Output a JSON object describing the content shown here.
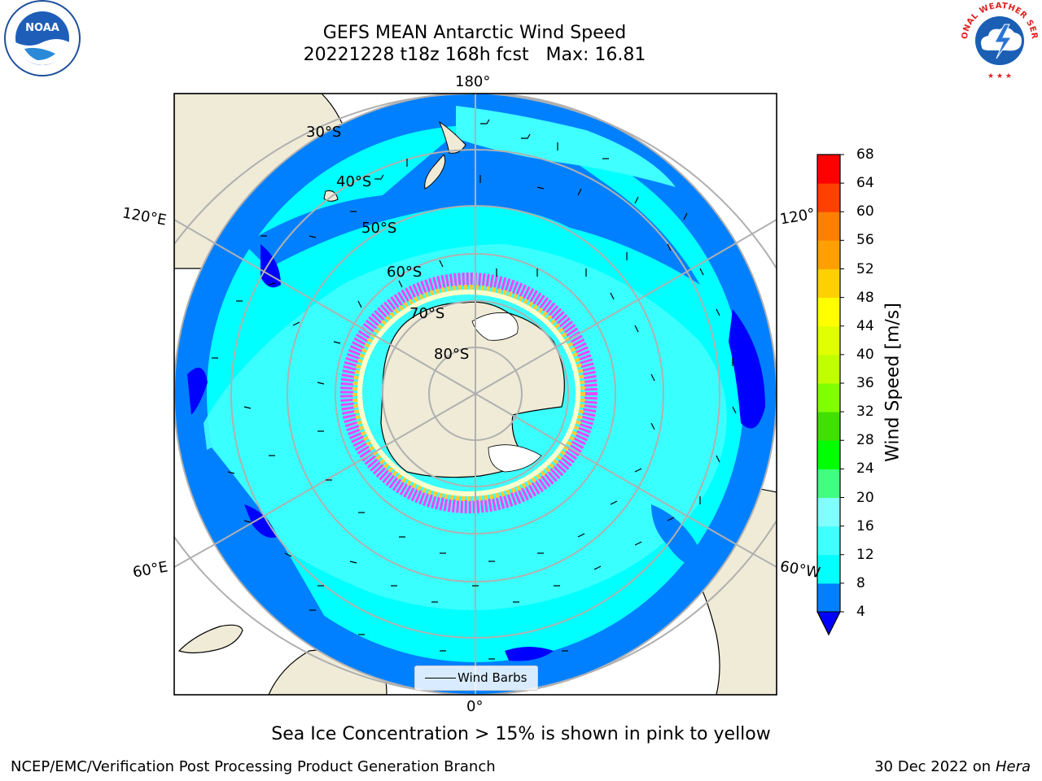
{
  "title": {
    "line1": "GEFS MEAN Antarctic Wind Speed",
    "line2": "20221228 t18z 168h fcst   Max: 16.81"
  },
  "map": {
    "projection": "south-polar-stereographic",
    "longitude_labels": [
      "180°",
      "120°E",
      "120°",
      "60°E",
      "60°W",
      "0°"
    ],
    "latitude_labels": [
      "30°S",
      "40°S",
      "50°S",
      "60°S",
      "70°S",
      "80°S"
    ],
    "land_color": "#efebd7",
    "ice_colors": [
      "#ff66cc",
      "#ff33ff",
      "#ffcc33",
      "#ffff66"
    ]
  },
  "legend": {
    "label": "Wind Barbs"
  },
  "colorbar": {
    "label": "Wind Speed [m/s]",
    "ticks": [
      "4",
      "8",
      "12",
      "16",
      "20",
      "24",
      "28",
      "32",
      "36",
      "40",
      "44",
      "48",
      "52",
      "56",
      "60",
      "64",
      "68"
    ],
    "colors": [
      "#0080ff",
      "#00ffff",
      "#40ffff",
      "#80ffff",
      "#40ff80",
      "#00ff00",
      "#40e000",
      "#80ff00",
      "#c0ff00",
      "#e0ff00",
      "#ffff00",
      "#ffd000",
      "#ffa000",
      "#ff8000",
      "#ff4000",
      "#ff0000"
    ],
    "under_color": "#0000ff"
  },
  "footer": {
    "note": "Sea Ice Concentration > 15% is shown in pink to yellow",
    "credit": "NCEP/EMC/Verification Post Processing Product Generation Branch",
    "date_text": "30 Dec 2022 on",
    "machine": "Hera"
  },
  "logos": {
    "left": "noaa-logo",
    "right": "national-weather-service-logo",
    "right_text": "NATIONAL WEATHER SERVICE"
  }
}
